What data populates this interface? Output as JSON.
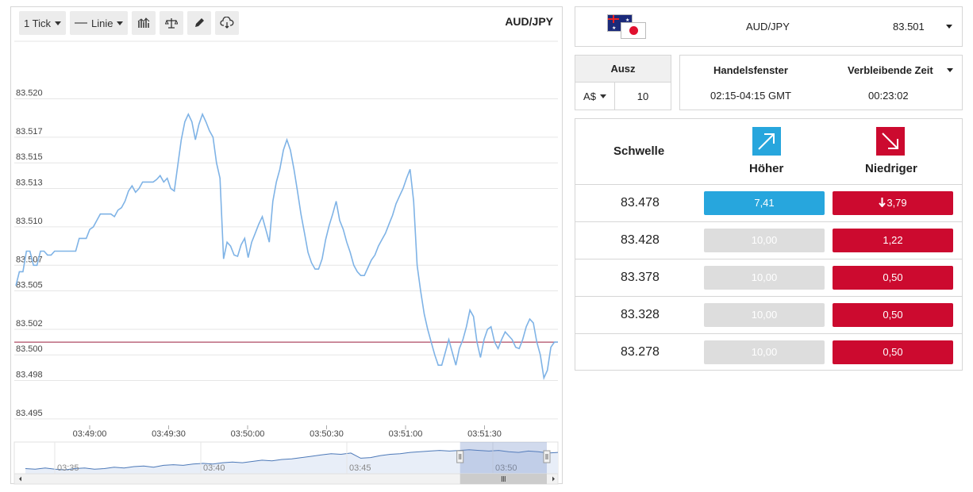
{
  "toolbar": {
    "tick_label": "1 Tick",
    "line_label": "Linie",
    "icons": [
      "indicator-icon",
      "balance-icon",
      "pencil-icon",
      "cloud-download-icon"
    ]
  },
  "chart_title": "AUD/JPY",
  "chart_data": {
    "type": "line",
    "title": "AUD/JPY",
    "ylim": [
      83.4945,
      83.5222
    ],
    "y_ticks": [
      "83.520",
      "83.517",
      "83.515",
      "83.513",
      "83.510",
      "83.507",
      "83.505",
      "83.502",
      "83.500",
      "83.498",
      "83.495"
    ],
    "x_ticks": [
      "03:49:00",
      "03:49:30",
      "03:50:00",
      "03:50:30",
      "03:51:00",
      "03:51:30"
    ],
    "reference_line": 83.501,
    "series": [
      {
        "values": [
          83.5054,
          83.5065,
          83.5065,
          83.5081,
          83.5081,
          83.507,
          83.507,
          83.5081,
          83.5081,
          83.5078,
          83.5078,
          83.5081,
          83.5081,
          83.5081,
          83.5081,
          83.5081,
          83.5081,
          83.5081,
          83.5091,
          83.5091,
          83.5091,
          83.5098,
          83.51,
          83.5105,
          83.511,
          83.511,
          83.511,
          83.511,
          83.5108,
          83.5113,
          83.5115,
          83.512,
          83.5128,
          83.5132,
          83.5127,
          83.513,
          83.5135,
          83.5135,
          83.5135,
          83.5135,
          83.5137,
          83.514,
          83.5135,
          83.5138,
          83.513,
          83.5128,
          83.5148,
          83.5168,
          83.5182,
          83.5188,
          83.5182,
          83.5168,
          83.518,
          83.5188,
          83.5182,
          83.5175,
          83.517,
          83.515,
          83.5138,
          83.5075,
          83.5088,
          83.5085,
          83.5078,
          83.5077,
          83.5086,
          83.5091,
          83.5076,
          83.5088,
          83.5095,
          83.5102,
          83.5108,
          83.5098,
          83.5088,
          83.512,
          83.5135,
          83.5145,
          83.516,
          83.5168,
          83.516,
          83.5145,
          83.5128,
          83.511,
          83.5095,
          83.508,
          83.5072,
          83.5067,
          83.5067,
          83.5075,
          83.509,
          83.5101,
          83.511,
          83.512,
          83.5105,
          83.5098,
          83.5088,
          83.508,
          83.507,
          83.5065,
          83.5062,
          83.5062,
          83.5068,
          83.5074,
          83.5078,
          83.5085,
          83.509,
          83.5095,
          83.5102,
          83.5109,
          83.5118,
          83.5124,
          83.513,
          83.5138,
          83.5145,
          83.512,
          83.507,
          83.505,
          83.5032,
          83.502,
          83.501,
          83.5,
          83.4992,
          83.4992,
          83.5002,
          83.5012,
          83.5002,
          83.4992,
          83.5005,
          83.5012,
          83.5022,
          83.5035,
          83.503,
          83.501,
          83.4998,
          83.5012,
          83.502,
          83.5022,
          83.501,
          83.5005,
          83.5012,
          83.5018,
          83.5015,
          83.5012,
          83.5006,
          83.5005,
          83.5012,
          83.5022,
          83.5028,
          83.5025,
          83.501,
          83.5,
          83.4982,
          83.4988,
          83.5006,
          83.501,
          83.501
        ]
      }
    ],
    "navigator": {
      "x_ticks": [
        "03:35",
        "03:40",
        "03:45",
        "03:50"
      ],
      "values": [
        83.488,
        83.487,
        83.489,
        83.487,
        83.486,
        83.488,
        83.489,
        83.487,
        83.488,
        83.49,
        83.489,
        83.491,
        83.492,
        83.49,
        83.493,
        83.494,
        83.493,
        83.495,
        83.496,
        83.495,
        83.497,
        83.498,
        83.497,
        83.499,
        83.501,
        83.5,
        83.502,
        83.503,
        83.505,
        83.507,
        83.509,
        83.511,
        83.51,
        83.512,
        83.504,
        83.505,
        83.508,
        83.51,
        83.511,
        83.513,
        83.514,
        83.515,
        83.516,
        83.515,
        83.516,
        83.517,
        83.516,
        83.515,
        83.516,
        83.514,
        83.513,
        83.515,
        83.514,
        83.512,
        83.513
      ],
      "selected_window_start": 0.82
    }
  },
  "asset": {
    "name": "AUD/JPY",
    "price": "83.501"
  },
  "payout": {
    "label": "Ausz",
    "currency": "A$",
    "amount": "10"
  },
  "trading_window": {
    "label": "Handelsfenster",
    "value": "02:15-04:15 GMT"
  },
  "remaining_time": {
    "label": "Verbleibende Zeit",
    "value": "00:23:02"
  },
  "strike_table": {
    "col_threshold": "Schwelle",
    "col_higher": "Höher",
    "col_lower": "Niedriger",
    "rows": [
      {
        "strike": "83.478",
        "higher": "7,41",
        "lower": "3,79",
        "higher_state": "active",
        "lower_state": "active",
        "lower_trend": "down"
      },
      {
        "strike": "83.428",
        "higher": "10,00",
        "lower": "1,22",
        "higher_state": "disabled",
        "lower_state": "active",
        "lower_trend": ""
      },
      {
        "strike": "83.378",
        "higher": "10,00",
        "lower": "0,50",
        "higher_state": "disabled",
        "lower_state": "active",
        "lower_trend": ""
      },
      {
        "strike": "83.328",
        "higher": "10,00",
        "lower": "0,50",
        "higher_state": "disabled",
        "lower_state": "active",
        "lower_trend": ""
      },
      {
        "strike": "83.278",
        "higher": "10,00",
        "lower": "0,50",
        "higher_state": "disabled",
        "lower_state": "active",
        "lower_trend": ""
      }
    ]
  },
  "colors": {
    "line": "#7fb3e6",
    "reference_line": "#9a1f3d",
    "higher": "#27a6dd",
    "lower": "#cc0a2f",
    "disabled": "#dddddd"
  }
}
